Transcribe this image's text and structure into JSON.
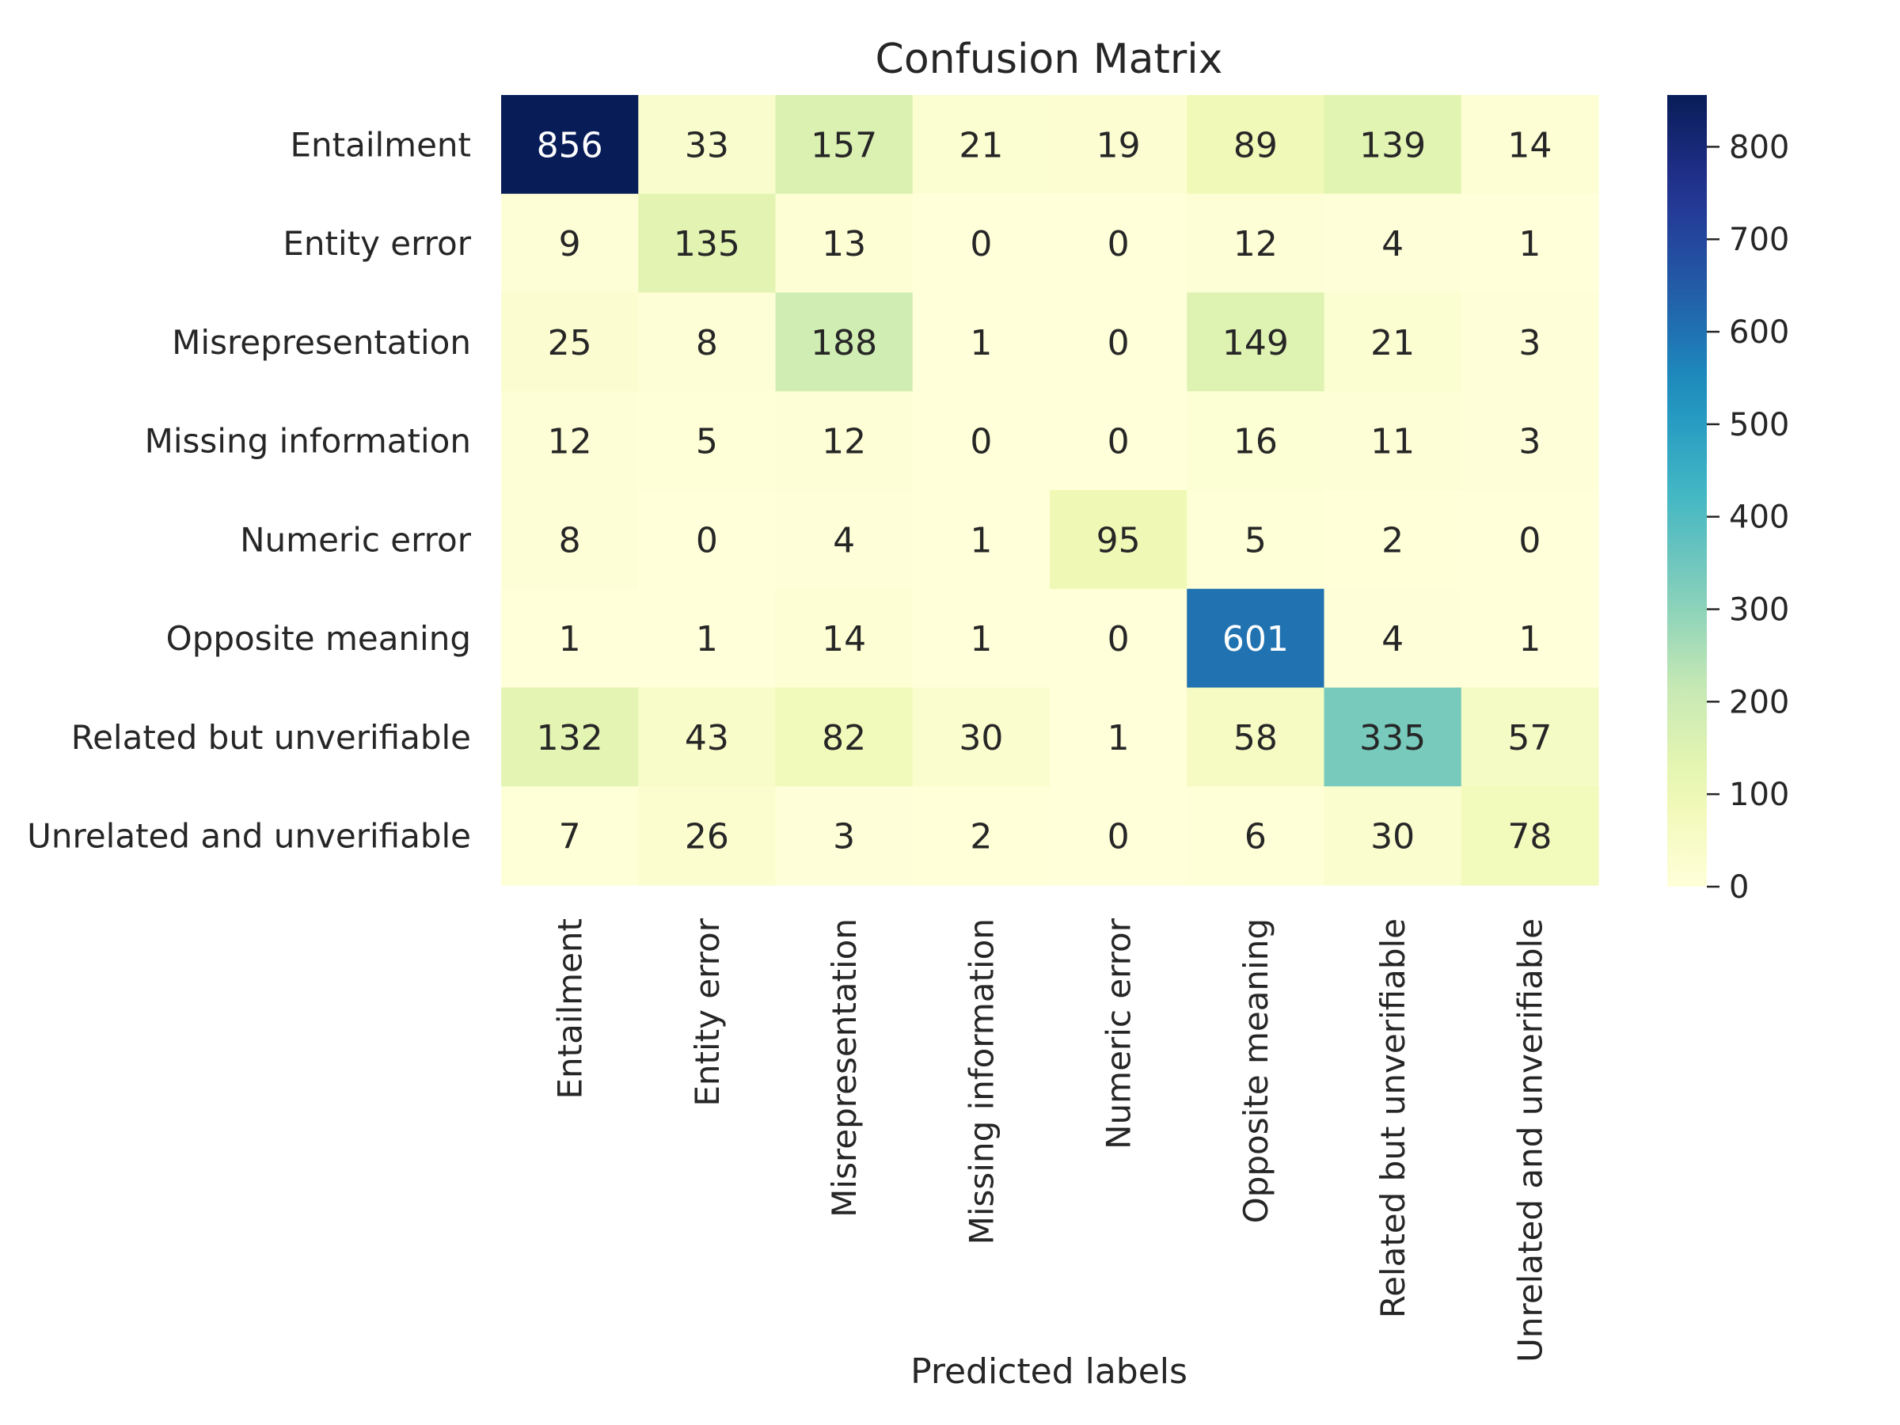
{
  "chart_data": {
    "type": "heatmap",
    "title": "Confusion Matrix",
    "xlabel": "Predicted labels",
    "ylabel": "",
    "row_labels": [
      "Entailment",
      "Entity error",
      "Misrepresentation",
      "Missing information",
      "Numeric error",
      "Opposite meaning",
      "Related but unverifiable",
      "Unrelated and unverifiable"
    ],
    "col_labels": [
      "Entailment",
      "Entity error",
      "Misrepresentation",
      "Missing information",
      "Numeric error",
      "Opposite meaning",
      "Related but unverifiable",
      "Unrelated and unverifiable"
    ],
    "values": [
      [
        856,
        33,
        157,
        21,
        19,
        89,
        139,
        14
      ],
      [
        9,
        135,
        13,
        0,
        0,
        12,
        4,
        1
      ],
      [
        25,
        8,
        188,
        1,
        0,
        149,
        21,
        3
      ],
      [
        12,
        5,
        12,
        0,
        0,
        16,
        11,
        3
      ],
      [
        8,
        0,
        4,
        1,
        95,
        5,
        2,
        0
      ],
      [
        1,
        1,
        14,
        1,
        0,
        601,
        4,
        1
      ],
      [
        132,
        43,
        82,
        30,
        1,
        58,
        335,
        57
      ],
      [
        7,
        26,
        3,
        2,
        0,
        6,
        30,
        78
      ]
    ],
    "colormap": "YlGnBu",
    "colorbar": {
      "range": [
        0,
        856
      ],
      "ticks": [
        0,
        100,
        200,
        300,
        400,
        500,
        600,
        700,
        800
      ]
    },
    "grid": false
  }
}
